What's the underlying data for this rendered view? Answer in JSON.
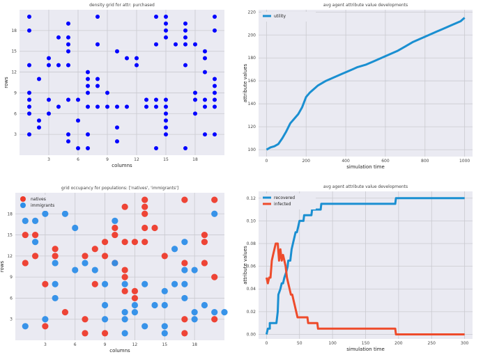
{
  "chart_data": [
    {
      "id": "panel1",
      "type": "scatter",
      "title": "density grid for attr: purchased",
      "xlabel": "columns",
      "ylabel": "rows",
      "xlim": [
        0,
        21
      ],
      "ylim": [
        0,
        21
      ],
      "xticks": [
        3,
        6,
        9,
        12,
        15,
        18
      ],
      "yticks": [
        3,
        6,
        9,
        12,
        15,
        18
      ],
      "color": "#0000ff",
      "points": [
        [
          1,
          3
        ],
        [
          1,
          6
        ],
        [
          1,
          7
        ],
        [
          1,
          8
        ],
        [
          1,
          9
        ],
        [
          1,
          13
        ],
        [
          1,
          18
        ],
        [
          1,
          20
        ],
        [
          2,
          4
        ],
        [
          2,
          5
        ],
        [
          2,
          11
        ],
        [
          3,
          6
        ],
        [
          3,
          8
        ],
        [
          3,
          13
        ],
        [
          3,
          14
        ],
        [
          4,
          7
        ],
        [
          4,
          13
        ],
        [
          4,
          17
        ],
        [
          5,
          2
        ],
        [
          5,
          3
        ],
        [
          5,
          8
        ],
        [
          5,
          13
        ],
        [
          5,
          15
        ],
        [
          5,
          16
        ],
        [
          5,
          17
        ],
        [
          5,
          19
        ],
        [
          6,
          1
        ],
        [
          6,
          5
        ],
        [
          6,
          8
        ],
        [
          7,
          1
        ],
        [
          7,
          3
        ],
        [
          7,
          7
        ],
        [
          7,
          9
        ],
        [
          7,
          10
        ],
        [
          7,
          11
        ],
        [
          7,
          12
        ],
        [
          8,
          7
        ],
        [
          8,
          10
        ],
        [
          8,
          11
        ],
        [
          8,
          16
        ],
        [
          8,
          20
        ],
        [
          9,
          7
        ],
        [
          9,
          9
        ],
        [
          10,
          2
        ],
        [
          10,
          4
        ],
        [
          10,
          7
        ],
        [
          10,
          15
        ],
        [
          11,
          7
        ],
        [
          11,
          14
        ],
        [
          12,
          13
        ],
        [
          12,
          14
        ],
        [
          13,
          7
        ],
        [
          13,
          8
        ],
        [
          14,
          1
        ],
        [
          14,
          7
        ],
        [
          14,
          8
        ],
        [
          14,
          16
        ],
        [
          14,
          20
        ],
        [
          15,
          3
        ],
        [
          15,
          4
        ],
        [
          15,
          5
        ],
        [
          15,
          6
        ],
        [
          15,
          7
        ],
        [
          15,
          8
        ],
        [
          15,
          17
        ],
        [
          15,
          18
        ],
        [
          15,
          19
        ],
        [
          15,
          20
        ],
        [
          16,
          16
        ],
        [
          17,
          1
        ],
        [
          17,
          13
        ],
        [
          17,
          16
        ],
        [
          17,
          17
        ],
        [
          17,
          18
        ],
        [
          17,
          19
        ],
        [
          18,
          6
        ],
        [
          18,
          8
        ],
        [
          18,
          9
        ],
        [
          18,
          16
        ],
        [
          19,
          3
        ],
        [
          19,
          7
        ],
        [
          19,
          8
        ],
        [
          19,
          12
        ],
        [
          19,
          14
        ],
        [
          19,
          15
        ],
        [
          20,
          3
        ],
        [
          20,
          7
        ],
        [
          20,
          8
        ],
        [
          20,
          9
        ],
        [
          20,
          10
        ],
        [
          20,
          11
        ],
        [
          20,
          18
        ],
        [
          20,
          20
        ]
      ]
    },
    {
      "id": "panel2",
      "type": "line",
      "title": "avg agent attribute value developments",
      "xlabel": "simulation time",
      "ylabel": "attribute values",
      "xlim": [
        -40,
        1040
      ],
      "ylim": [
        94,
        222
      ],
      "xticks": [
        0,
        200,
        400,
        600,
        800,
        1000
      ],
      "yticks": [
        100,
        120,
        140,
        160,
        180,
        200,
        220
      ],
      "legend": "top-left",
      "series": [
        {
          "name": "utility",
          "color": "#1a8fd1",
          "points": [
            [
              0,
              100
            ],
            [
              20,
              102
            ],
            [
              40,
              103
            ],
            [
              60,
              105
            ],
            [
              80,
              110
            ],
            [
              100,
              116
            ],
            [
              120,
              123
            ],
            [
              140,
              127
            ],
            [
              160,
              131
            ],
            [
              180,
              137
            ],
            [
              200,
              146
            ],
            [
              220,
              150
            ],
            [
              240,
              153
            ],
            [
              260,
              156
            ],
            [
              300,
              160
            ],
            [
              340,
              163
            ],
            [
              380,
              166
            ],
            [
              420,
              169
            ],
            [
              460,
              172
            ],
            [
              500,
              174
            ],
            [
              540,
              177
            ],
            [
              580,
              180
            ],
            [
              620,
              183
            ],
            [
              660,
              186
            ],
            [
              700,
              190
            ],
            [
              740,
              194
            ],
            [
              780,
              197
            ],
            [
              820,
              200
            ],
            [
              860,
              203
            ],
            [
              900,
              206
            ],
            [
              940,
              209
            ],
            [
              980,
              212
            ],
            [
              1000,
              215
            ]
          ]
        }
      ]
    },
    {
      "id": "panel3",
      "type": "scatter",
      "title": "grid occupancy for populations: ['natives', 'immigrants']",
      "xlabel": "columns",
      "ylabel": "rows",
      "xlim": [
        0,
        21
      ],
      "ylim": [
        0,
        21
      ],
      "xticks": [
        3,
        6,
        9,
        12,
        15,
        18
      ],
      "yticks": [
        3,
        6,
        9,
        12,
        15,
        18
      ],
      "legend": "top-left",
      "series": [
        {
          "name": "natives",
          "color": "#ee3b2b",
          "points": [
            [
              1,
              11
            ],
            [
              1,
              15
            ],
            [
              2,
              12
            ],
            [
              2,
              15
            ],
            [
              3,
              2
            ],
            [
              3,
              8
            ],
            [
              4,
              12
            ],
            [
              4,
              13
            ],
            [
              5,
              4
            ],
            [
              7,
              3
            ],
            [
              7,
              1
            ],
            [
              7,
              12
            ],
            [
              8,
              8
            ],
            [
              8,
              13
            ],
            [
              9,
              1
            ],
            [
              9,
              12
            ],
            [
              9,
              14
            ],
            [
              10,
              15
            ],
            [
              10,
              16
            ],
            [
              10,
              11
            ],
            [
              11,
              7
            ],
            [
              11,
              9
            ],
            [
              11,
              10
            ],
            [
              11,
              14
            ],
            [
              11,
              19
            ],
            [
              12,
              6
            ],
            [
              12,
              7
            ],
            [
              12,
              14
            ],
            [
              13,
              14
            ],
            [
              13,
              16
            ],
            [
              13,
              19
            ],
            [
              13,
              20
            ],
            [
              13,
              18
            ],
            [
              14,
              16
            ],
            [
              15,
              12
            ],
            [
              17,
              1
            ],
            [
              17,
              3
            ],
            [
              17,
              11
            ],
            [
              17,
              20
            ],
            [
              19,
              11
            ],
            [
              19,
              15
            ],
            [
              19,
              14
            ],
            [
              20,
              3
            ],
            [
              20,
              9
            ],
            [
              20,
              20
            ]
          ]
        },
        {
          "name": "immigrants",
          "color": "#2e8ee8",
          "points": [
            [
              1,
              2
            ],
            [
              1,
              17
            ],
            [
              2,
              14
            ],
            [
              2,
              17
            ],
            [
              3,
              3
            ],
            [
              3,
              18
            ],
            [
              4,
              6
            ],
            [
              4,
              8
            ],
            [
              4,
              11
            ],
            [
              5,
              18
            ],
            [
              6,
              10
            ],
            [
              6,
              16
            ],
            [
              7,
              11
            ],
            [
              8,
              10
            ],
            [
              9,
              3
            ],
            [
              9,
              8
            ],
            [
              9,
              5
            ],
            [
              10,
              11
            ],
            [
              10,
              17
            ],
            [
              11,
              1
            ],
            [
              11,
              3
            ],
            [
              11,
              8
            ],
            [
              11,
              4
            ],
            [
              12,
              4
            ],
            [
              12,
              5
            ],
            [
              13,
              2
            ],
            [
              13,
              8
            ],
            [
              14,
              5
            ],
            [
              15,
              5
            ],
            [
              15,
              7
            ],
            [
              15,
              1
            ],
            [
              15,
              2
            ],
            [
              16,
              8
            ],
            [
              16,
              13
            ],
            [
              17,
              6
            ],
            [
              17,
              8
            ],
            [
              17,
              10
            ],
            [
              17,
              14
            ],
            [
              18,
              3
            ],
            [
              18,
              4
            ],
            [
              18,
              10
            ],
            [
              19,
              5
            ],
            [
              20,
              4
            ],
            [
              20,
              18
            ],
            [
              21,
              4
            ]
          ]
        }
      ]
    },
    {
      "id": "panel4",
      "type": "line",
      "title": "avg agent attribute value developments",
      "xlabel": "simulation time",
      "ylabel": "attribute values",
      "xlim": [
        -12,
        312
      ],
      "ylim": [
        -0.004,
        0.126
      ],
      "xticks": [
        0,
        50,
        100,
        150,
        200,
        250,
        300
      ],
      "yticks": [
        0.0,
        0.02,
        0.04,
        0.06,
        0.08,
        0.1,
        0.12
      ],
      "ytick_labels": [
        "0.00",
        "0.02",
        "0.04",
        "0.06",
        "0.08",
        "0.10",
        "0.12"
      ],
      "legend": "top-left",
      "series": [
        {
          "name": "recovered",
          "color": "#1a8fd1",
          "points": [
            [
              0,
              0
            ],
            [
              2,
              0.005
            ],
            [
              5,
              0.005
            ],
            [
              5,
              0.01
            ],
            [
              15,
              0.01
            ],
            [
              17,
              0.02
            ],
            [
              18,
              0.035
            ],
            [
              21,
              0.04
            ],
            [
              23,
              0.045
            ],
            [
              25,
              0.045
            ],
            [
              27,
              0.05
            ],
            [
              30,
              0.055
            ],
            [
              32,
              0.06
            ],
            [
              33,
              0.065
            ],
            [
              36,
              0.065
            ],
            [
              38,
              0.075
            ],
            [
              40,
              0.08
            ],
            [
              42,
              0.085
            ],
            [
              44,
              0.09
            ],
            [
              46,
              0.09
            ],
            [
              48,
              0.095
            ],
            [
              50,
              0.1
            ],
            [
              56,
              0.1
            ],
            [
              57,
              0.105
            ],
            [
              68,
              0.105
            ],
            [
              69,
              0.11
            ],
            [
              82,
              0.11
            ],
            [
              83,
              0.115
            ],
            [
              195,
              0.115
            ],
            [
              196,
              0.12
            ],
            [
              300,
              0.12
            ]
          ]
        },
        {
          "name": "infected",
          "color": "#ee4b2b",
          "points": [
            [
              0,
              0.05
            ],
            [
              2,
              0.045
            ],
            [
              4,
              0.05
            ],
            [
              6,
              0.05
            ],
            [
              8,
              0.065
            ],
            [
              10,
              0.07
            ],
            [
              12,
              0.075
            ],
            [
              14,
              0.08
            ],
            [
              17,
              0.08
            ],
            [
              19,
              0.065
            ],
            [
              21,
              0.075
            ],
            [
              23,
              0.065
            ],
            [
              25,
              0.07
            ],
            [
              27,
              0.065
            ],
            [
              29,
              0.06
            ],
            [
              31,
              0.05
            ],
            [
              33,
              0.045
            ],
            [
              35,
              0.04
            ],
            [
              37,
              0.035
            ],
            [
              39,
              0.035
            ],
            [
              41,
              0.03
            ],
            [
              43,
              0.025
            ],
            [
              45,
              0.02
            ],
            [
              47,
              0.015
            ],
            [
              49,
              0.015
            ],
            [
              62,
              0.015
            ],
            [
              63,
              0.01
            ],
            [
              77,
              0.01
            ],
            [
              78,
              0.005
            ],
            [
              195,
              0.005
            ],
            [
              196,
              0.0
            ],
            [
              300,
              0.0
            ]
          ]
        }
      ]
    }
  ]
}
